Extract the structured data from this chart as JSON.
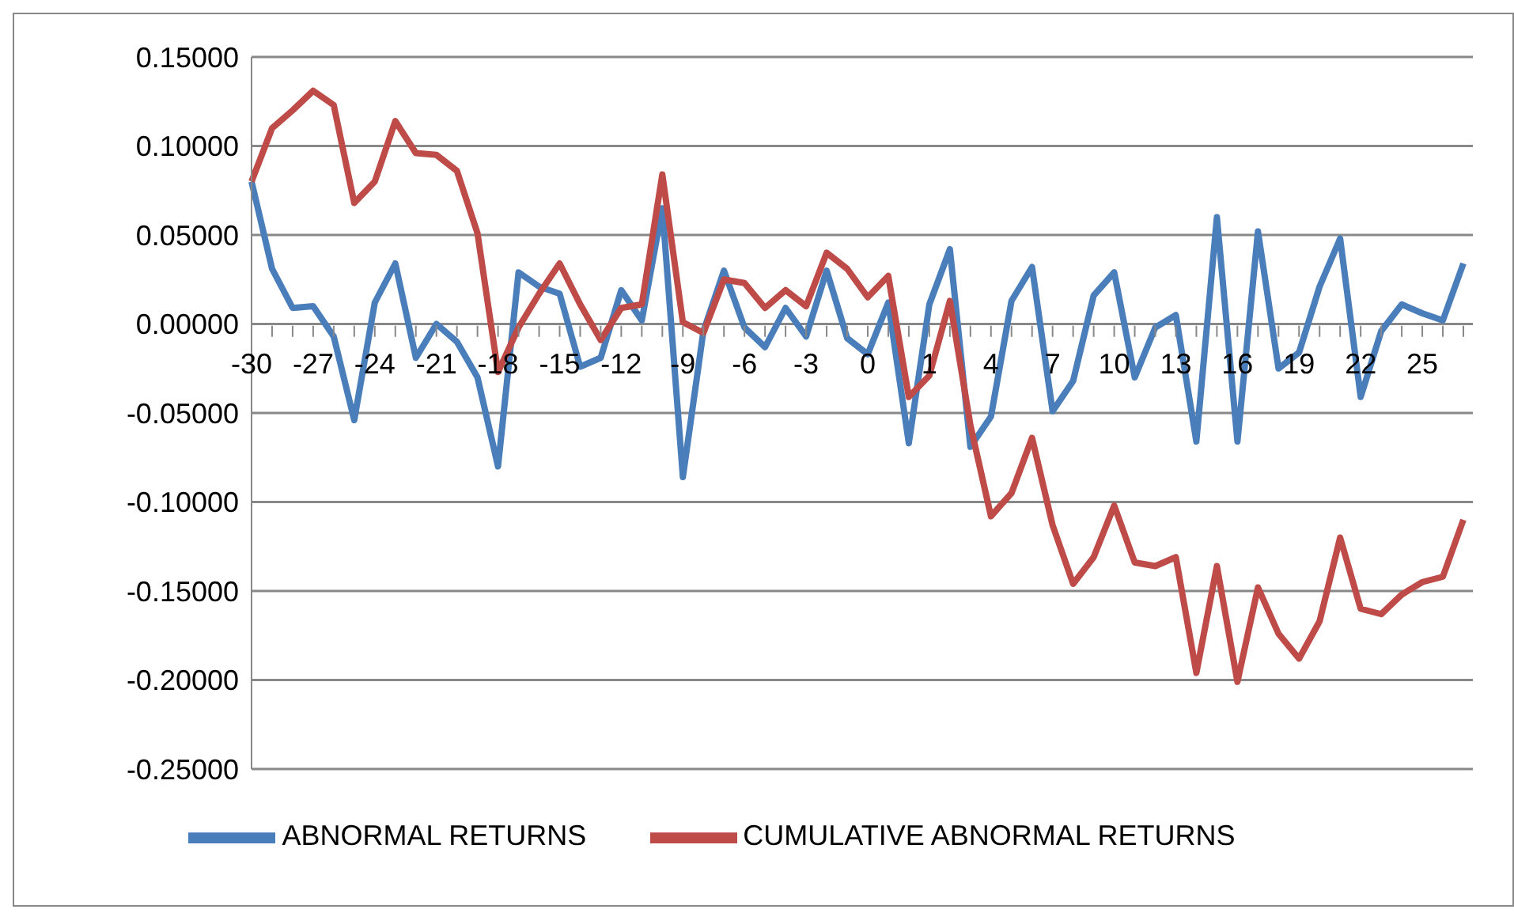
{
  "chart_data": {
    "type": "line",
    "categories": [
      "-30",
      null,
      null,
      "-27",
      null,
      null,
      "-24",
      null,
      null,
      "-21",
      null,
      null,
      "-18",
      null,
      null,
      "-15",
      null,
      null,
      "-12",
      null,
      null,
      "-9",
      null,
      null,
      "-6",
      null,
      null,
      "-3",
      null,
      null,
      "0",
      null,
      null,
      "1",
      null,
      null,
      "4",
      null,
      null,
      "7",
      null,
      null,
      "10",
      null,
      null,
      "13",
      null,
      null,
      "16",
      null,
      null,
      "19",
      null,
      null,
      "22",
      null,
      null,
      "25",
      null,
      null
    ],
    "series": [
      {
        "name": "ABNORMAL RETURNS",
        "color": "#4a7ebb",
        "values": [
          0.08,
          0.031,
          0.009,
          0.01,
          -0.007,
          -0.054,
          0.012,
          0.034,
          -0.019,
          0.0,
          -0.01,
          -0.03,
          -0.08,
          0.029,
          0.021,
          0.017,
          -0.024,
          -0.019,
          0.019,
          0.002,
          0.065,
          -0.086,
          -0.004,
          0.03,
          -0.002,
          -0.013,
          0.009,
          -0.007,
          0.03,
          -0.008,
          -0.017,
          0.012,
          -0.067,
          0.011,
          0.042,
          -0.069,
          -0.052,
          0.013,
          0.032,
          -0.049,
          -0.032,
          0.016,
          0.029,
          -0.03,
          -0.002,
          0.005,
          -0.066,
          0.06,
          -0.066,
          0.052,
          -0.025,
          -0.016,
          0.021,
          0.048,
          -0.041,
          -0.004,
          0.011,
          0.006,
          0.002,
          0.034
        ]
      },
      {
        "name": "CUMULATIVE ABNORMAL RETURNS",
        "color": "#be4b48",
        "values": [
          0.08,
          0.11,
          0.12,
          0.131,
          0.123,
          0.068,
          0.08,
          0.114,
          0.096,
          0.095,
          0.086,
          0.051,
          -0.027,
          -0.002,
          0.017,
          0.034,
          0.011,
          -0.009,
          0.009,
          0.011,
          0.084,
          0.001,
          -0.005,
          0.025,
          0.023,
          0.009,
          0.019,
          0.01,
          0.04,
          0.031,
          0.015,
          0.027,
          -0.041,
          -0.029,
          0.013,
          -0.057,
          -0.108,
          -0.095,
          -0.064,
          -0.113,
          -0.146,
          -0.131,
          -0.102,
          -0.134,
          -0.136,
          -0.131,
          -0.196,
          -0.136,
          -0.201,
          -0.148,
          -0.174,
          -0.188,
          -0.167,
          -0.12,
          -0.16,
          -0.163,
          -0.152,
          -0.145,
          -0.142,
          -0.11
        ]
      }
    ],
    "ylim": [
      -0.25,
      0.15
    ],
    "yticks": [
      {
        "value": 0.15,
        "label": "0.15000"
      },
      {
        "value": 0.1,
        "label": "0.10000"
      },
      {
        "value": 0.05,
        "label": "0.05000"
      },
      {
        "value": 0,
        "label": "0.00000"
      },
      {
        "value": -0.05,
        "label": "-0.05000"
      },
      {
        "value": -0.1,
        "label": "-0.10000"
      },
      {
        "value": -0.15,
        "label": "-0.15000"
      },
      {
        "value": -0.2,
        "label": "-0.20000"
      },
      {
        "value": -0.25,
        "label": "-0.25000"
      }
    ],
    "grid": "y",
    "legend": "bottom",
    "marker": "none",
    "line_style": "solid"
  }
}
